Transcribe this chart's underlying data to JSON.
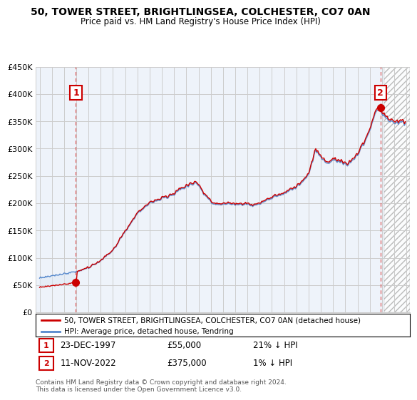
{
  "title": "50, TOWER STREET, BRIGHTLINGSEA, COLCHESTER, CO7 0AN",
  "subtitle": "Price paid vs. HM Land Registry's House Price Index (HPI)",
  "legend_line1": "50, TOWER STREET, BRIGHTLINGSEA, COLCHESTER, CO7 0AN (detached house)",
  "legend_line2": "HPI: Average price, detached house, Tendring",
  "annotation1": {
    "number": "1",
    "date": "23-DEC-1997",
    "price": "£55,000",
    "pct": "21% ↓ HPI"
  },
  "annotation2": {
    "number": "2",
    "date": "11-NOV-2022",
    "price": "£375,000",
    "pct": "1% ↓ HPI"
  },
  "footer": "Contains HM Land Registry data © Crown copyright and database right 2024.\nThis data is licensed under the Open Government Licence v3.0.",
  "sale1_year": 1997.97,
  "sale1_price": 55000,
  "sale2_year": 2022.87,
  "sale2_price": 375000,
  "property_color": "#cc0000",
  "hpi_color": "#5588cc",
  "fill_color": "#dde8f5",
  "ylim": [
    0,
    450000
  ],
  "xlim_start": 1994.7,
  "xlim_end": 2025.3,
  "yticks": [
    0,
    50000,
    100000,
    150000,
    200000,
    250000,
    300000,
    350000,
    400000,
    450000
  ]
}
